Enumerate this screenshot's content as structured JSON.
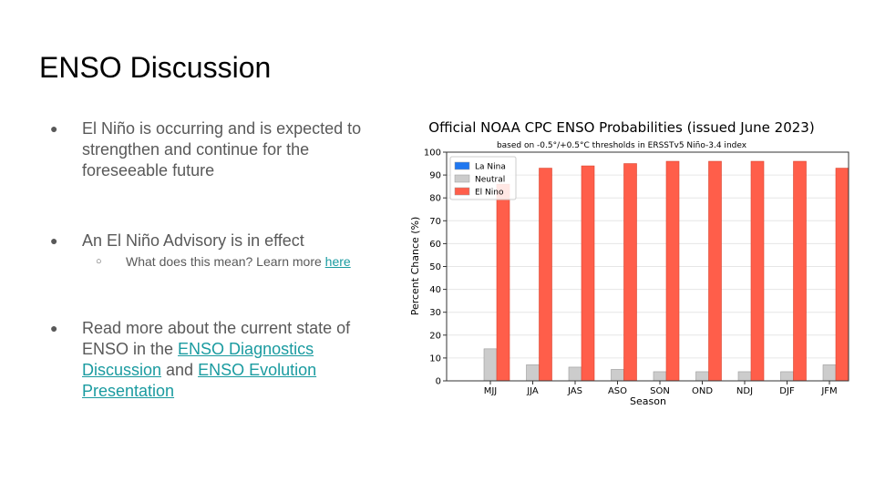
{
  "slide": {
    "title": "ENSO Discussion",
    "bullets": [
      {
        "text": "El Niño is occurring and is expected to strengthen and continue  for the foreseeable future"
      },
      {
        "text": "An El Niño Advisory is in effect",
        "sub": {
          "text": "What does this mean? Learn more ",
          "link": "here"
        }
      },
      {
        "text_before": "Read more about the current state of ENSO in the ",
        "link1": "ENSO Diagnostics Discussion",
        "text_mid": " and ",
        "link2": "ENSO Evolution Presentation"
      }
    ]
  },
  "chart_data": {
    "type": "bar",
    "title": "Official NOAA CPC ENSO Probabilities (issued June 2023)",
    "subtitle": "based on -0.5°/+0.5°C thresholds in ERSSTv5 Niño-3.4 index",
    "xlabel": "Season",
    "ylabel": "Percent Chance (%)",
    "ylim": [
      0,
      100
    ],
    "yticks": [
      0,
      10,
      20,
      30,
      40,
      50,
      60,
      70,
      80,
      90,
      100
    ],
    "grid": true,
    "legend_position": "top-left",
    "categories": [
      "MJJ",
      "JJA",
      "JAS",
      "ASO",
      "SON",
      "OND",
      "NDJ",
      "DJF",
      "JFM"
    ],
    "series": [
      {
        "name": "La Nina",
        "color": "#1f77f0",
        "values": [
          0,
          0,
          0,
          0,
          0,
          0,
          0,
          0,
          0
        ]
      },
      {
        "name": "Neutral",
        "color": "#cccccc",
        "values": [
          14,
          7,
          6,
          5,
          4,
          4,
          4,
          4,
          7
        ]
      },
      {
        "name": "El Nino",
        "color": "#ff5e4a",
        "values": [
          86,
          93,
          94,
          95,
          96,
          96,
          96,
          96,
          93
        ]
      }
    ]
  }
}
